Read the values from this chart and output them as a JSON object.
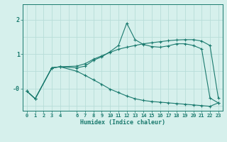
{
  "xlabel": "Humidex (Indice chaleur)",
  "bg_color": "#d6f0ec",
  "line_color": "#1a7a6e",
  "grid_color": "#b8ddd8",
  "xlim": [
    -0.5,
    23.5
  ],
  "ylim": [
    -0.65,
    2.45
  ],
  "yticks": [
    0.0,
    1.0,
    2.0
  ],
  "ytick_labels": [
    "-0",
    "1",
    "2"
  ],
  "xticks": [
    0,
    1,
    2,
    3,
    4,
    6,
    7,
    8,
    9,
    10,
    11,
    12,
    13,
    14,
    15,
    16,
    17,
    18,
    19,
    20,
    21,
    22,
    23
  ],
  "series1_x": [
    0,
    1,
    3,
    4,
    6,
    7,
    8,
    9,
    10,
    11,
    12,
    13,
    14,
    15,
    16,
    17,
    18,
    19,
    20,
    21,
    22,
    23
  ],
  "series1_y": [
    -0.08,
    -0.3,
    0.6,
    0.63,
    0.6,
    0.65,
    0.82,
    0.92,
    1.07,
    1.25,
    1.9,
    1.42,
    1.28,
    1.22,
    1.2,
    1.24,
    1.3,
    1.3,
    1.25,
    1.15,
    -0.28,
    -0.42
  ],
  "series2_x": [
    0,
    1,
    3,
    4,
    6,
    7,
    8,
    9,
    10,
    11,
    12,
    13,
    14,
    15,
    16,
    17,
    18,
    19,
    20,
    21,
    22,
    23
  ],
  "series2_y": [
    -0.08,
    -0.3,
    0.6,
    0.63,
    0.65,
    0.72,
    0.85,
    0.95,
    1.05,
    1.14,
    1.2,
    1.25,
    1.3,
    1.33,
    1.36,
    1.39,
    1.41,
    1.42,
    1.42,
    1.38,
    1.25,
    -0.28
  ],
  "series3_x": [
    0,
    1,
    3,
    4,
    6,
    7,
    8,
    9,
    10,
    11,
    12,
    13,
    14,
    15,
    16,
    17,
    18,
    19,
    20,
    21,
    22,
    23
  ],
  "series3_y": [
    -0.08,
    -0.3,
    0.6,
    0.63,
    0.5,
    0.38,
    0.25,
    0.12,
    -0.02,
    -0.12,
    -0.22,
    -0.3,
    -0.35,
    -0.38,
    -0.4,
    -0.42,
    -0.44,
    -0.46,
    -0.48,
    -0.5,
    -0.52,
    -0.42
  ]
}
